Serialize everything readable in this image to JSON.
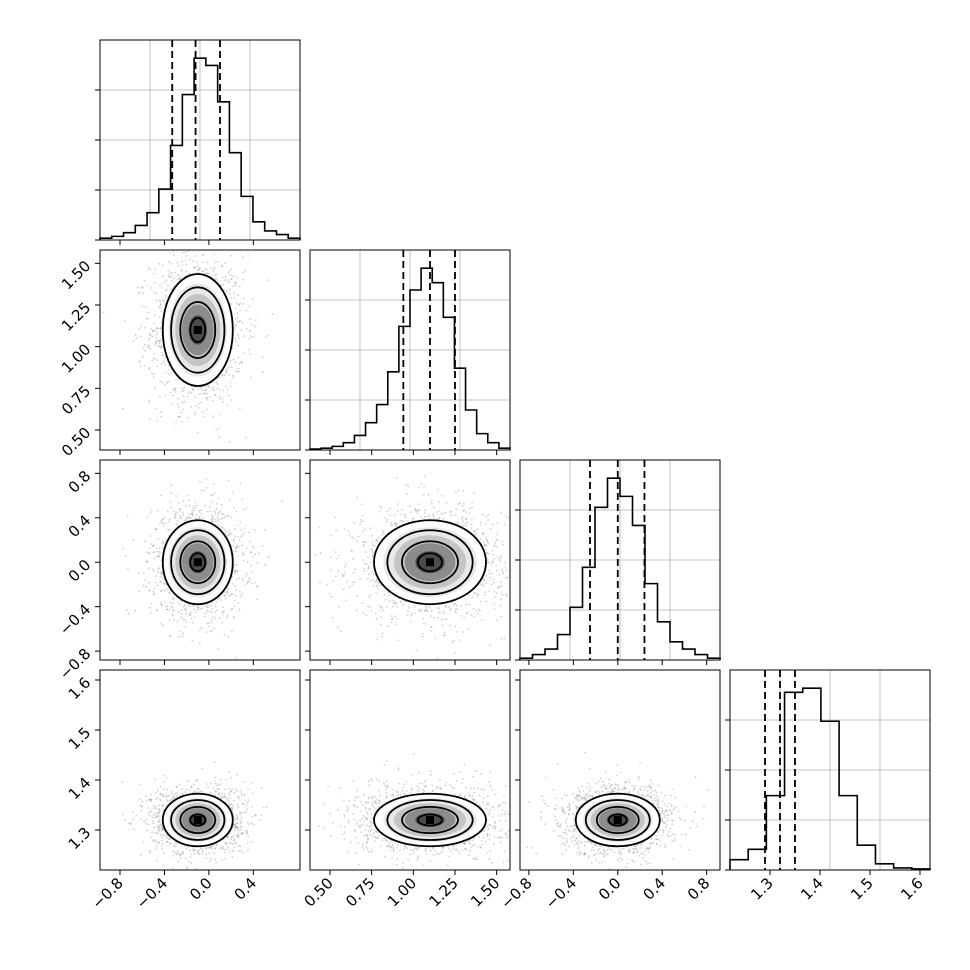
{
  "chart_data": {
    "type": "corner",
    "parameters": [
      {
        "hist": [
          1,
          2,
          4,
          8,
          15,
          28,
          52,
          80,
          100,
          96,
          76,
          48,
          24,
          10,
          5,
          3,
          1
        ],
        "quantiles": [
          -0.33,
          -0.12,
          0.1
        ],
        "range": [
          -0.98,
          0.82
        ],
        "ticks": [
          -0.8,
          -0.4,
          0.0,
          0.4
        ],
        "tick_labels": [
          "−0.8",
          "−0.4",
          "0.0",
          "0.4"
        ]
      },
      {
        "hist": [
          0.5,
          1,
          2,
          4,
          8,
          15,
          25,
          43,
          68,
          88,
          100,
          92,
          73,
          45,
          22,
          9,
          4,
          1
        ],
        "quantiles": [
          0.94,
          1.1,
          1.25
        ],
        "range": [
          0.38,
          1.58
        ],
        "ticks": [
          0.5,
          0.75,
          1.0,
          1.25,
          1.5
        ],
        "tick_labels": [
          "0.50",
          "0.75",
          "1.00",
          "1.25",
          "1.50"
        ]
      },
      {
        "hist": [
          1,
          3,
          6,
          14,
          29,
          51,
          84,
          100,
          90,
          74,
          42,
          21,
          10,
          6,
          3,
          1
        ],
        "quantiles": [
          -0.25,
          0.0,
          0.24
        ],
        "range": [
          -0.88,
          0.92
        ],
        "ticks": [
          -0.8,
          -0.4,
          0.0,
          0.4,
          0.8
        ],
        "tick_labels": [
          "−0.8",
          "−0.4",
          "0.0",
          "0.4",
          "0.8"
        ]
      },
      {
        "hist": [
          5,
          10,
          36,
          86,
          88,
          72,
          36,
          12,
          3,
          1,
          0.5
        ],
        "quantiles": [
          1.29,
          1.32,
          1.35
        ],
        "range": [
          1.22,
          1.62
        ],
        "ticks": [
          1.3,
          1.4,
          1.5,
          1.6
        ],
        "tick_labels": [
          "1.3",
          "1.4",
          "1.5",
          "1.6"
        ]
      }
    ],
    "means": [
      -0.1,
      1.1,
      0.0,
      1.32
    ],
    "stds": [
      0.15,
      0.16,
      0.18,
      0.025
    ],
    "xlabel": "",
    "ylabel": "",
    "grid": true
  }
}
